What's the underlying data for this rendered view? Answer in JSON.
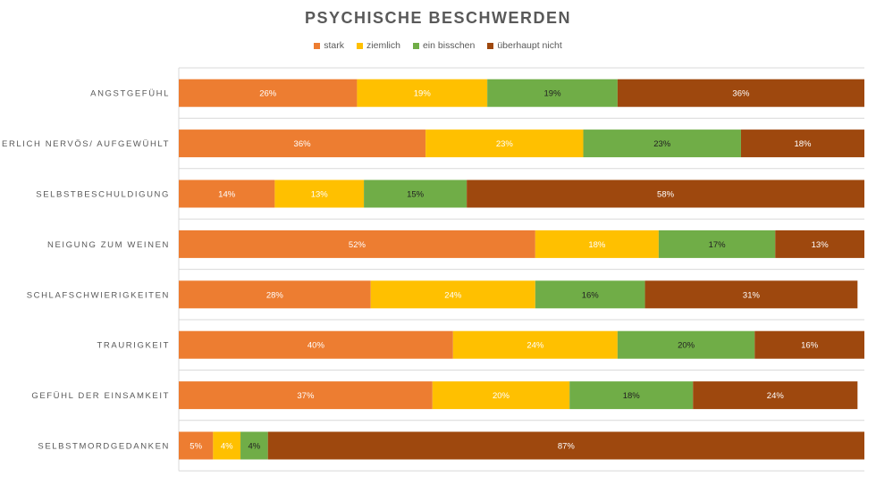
{
  "chart_data": {
    "type": "bar",
    "orientation": "horizontal-stacked-100",
    "title": "PSYCHISCHE BESCHWERDEN",
    "legend_position": "top",
    "grid": true,
    "xlim": [
      0,
      100
    ],
    "categories": [
      "ANGSTGEFÜHL",
      "INNERLICH NERVÖS/ AUFGEWÜHLT",
      "SELBSTBESCHULDIGUNG",
      "NEIGUNG ZUM WEINEN",
      "SCHLAFSCHWIERIGKEITEN",
      "TRAURIGKEIT",
      "GEFÜHL DER EINSAMKEIT",
      "SELBSTMORDGEDANKEN"
    ],
    "series": [
      {
        "name": "stark",
        "color": "#ED7D31",
        "label_color": "#ffffff",
        "values": [
          26,
          36,
          14,
          52,
          28,
          40,
          37,
          5
        ]
      },
      {
        "name": "ziemlich",
        "color": "#FFC000",
        "label_color": "#ffffff",
        "values": [
          19,
          23,
          13,
          18,
          24,
          24,
          20,
          4
        ]
      },
      {
        "name": "ein bisschen",
        "color": "#70AD47",
        "label_color": "#222222",
        "values": [
          19,
          23,
          15,
          17,
          16,
          20,
          18,
          4
        ]
      },
      {
        "name": "überhaupt nicht",
        "color": "#9E480E",
        "label_color": "#ffffff",
        "values": [
          36,
          18,
          58,
          13,
          31,
          16,
          24,
          87
        ]
      }
    ],
    "value_suffix": "%"
  }
}
